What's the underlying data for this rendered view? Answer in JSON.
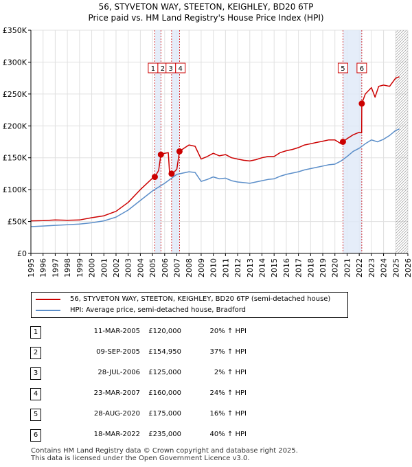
{
  "chart_data": {
    "type": "line",
    "title": "56, STYVETON WAY, STEETON, KEIGHLEY, BD20 6TP",
    "subtitle": "Price paid vs. HM Land Registry's House Price Index (HPI)",
    "xlim": [
      1995,
      2026
    ],
    "ylim": [
      0,
      350000
    ],
    "x_ticks": [
      1995,
      1996,
      1997,
      1998,
      1999,
      2000,
      2001,
      2002,
      2003,
      2004,
      2005,
      2006,
      2007,
      2008,
      2009,
      2010,
      2011,
      2012,
      2013,
      2014,
      2015,
      2016,
      2017,
      2018,
      2019,
      2020,
      2021,
      2022,
      2023,
      2024,
      2025,
      2026
    ],
    "y_ticks": [
      0,
      50000,
      100000,
      150000,
      200000,
      250000,
      300000,
      350000
    ],
    "y_tick_labels": [
      "£0",
      "£50K",
      "£100K",
      "£150K",
      "£200K",
      "£250K",
      "£300K",
      "£350K"
    ],
    "series": [
      {
        "name": "56, STYVETON WAY, STEETON, KEIGHLEY, BD20 6TP (semi-detached house)",
        "color": "#cc0000",
        "points": [
          [
            1995.0,
            51000
          ],
          [
            1996.0,
            51500
          ],
          [
            1997.0,
            52500
          ],
          [
            1998.0,
            52000
          ],
          [
            1999.0,
            52500
          ],
          [
            2000.0,
            56000
          ],
          [
            2001.0,
            59000
          ],
          [
            2002.0,
            66000
          ],
          [
            2003.0,
            80000
          ],
          [
            2004.0,
            100000
          ],
          [
            2005.0,
            118000
          ],
          [
            2005.19,
            120000
          ],
          [
            2005.5,
            130000
          ],
          [
            2005.69,
            154950
          ],
          [
            2006.0,
            157000
          ],
          [
            2006.3,
            158000
          ],
          [
            2006.4,
            127000
          ],
          [
            2006.57,
            125000
          ],
          [
            2006.8,
            128000
          ],
          [
            2007.0,
            132000
          ],
          [
            2007.22,
            160000
          ],
          [
            2007.6,
            165000
          ],
          [
            2008.0,
            170000
          ],
          [
            2008.5,
            168000
          ],
          [
            2009.0,
            148000
          ],
          [
            2009.5,
            152000
          ],
          [
            2010.0,
            157000
          ],
          [
            2010.5,
            153000
          ],
          [
            2011.0,
            155000
          ],
          [
            2011.5,
            150000
          ],
          [
            2012.0,
            148000
          ],
          [
            2012.5,
            146000
          ],
          [
            2013.0,
            145000
          ],
          [
            2013.5,
            147000
          ],
          [
            2014.0,
            150000
          ],
          [
            2014.5,
            152000
          ],
          [
            2015.0,
            152000
          ],
          [
            2015.5,
            158000
          ],
          [
            2016.0,
            161000
          ],
          [
            2016.5,
            163000
          ],
          [
            2017.0,
            166000
          ],
          [
            2017.5,
            170000
          ],
          [
            2018.0,
            172000
          ],
          [
            2018.5,
            174000
          ],
          [
            2019.0,
            176000
          ],
          [
            2019.5,
            178000
          ],
          [
            2020.0,
            178000
          ],
          [
            2020.5,
            172000
          ],
          [
            2020.66,
            175000
          ],
          [
            2021.0,
            180000
          ],
          [
            2021.5,
            186000
          ],
          [
            2022.0,
            190000
          ],
          [
            2022.2,
            189000
          ],
          [
            2022.21,
            235000
          ],
          [
            2022.5,
            250000
          ],
          [
            2023.0,
            260000
          ],
          [
            2023.3,
            245000
          ],
          [
            2023.6,
            262000
          ],
          [
            2024.0,
            264000
          ],
          [
            2024.5,
            262000
          ],
          [
            2025.0,
            275000
          ],
          [
            2025.3,
            277000
          ]
        ]
      },
      {
        "name": "HPI: Average price, semi-detached house, Bradford",
        "color": "#5b8ec9",
        "points": [
          [
            1995.0,
            42000
          ],
          [
            1996.0,
            43000
          ],
          [
            1997.0,
            44000
          ],
          [
            1998.0,
            45000
          ],
          [
            1999.0,
            46000
          ],
          [
            2000.0,
            48000
          ],
          [
            2001.0,
            51000
          ],
          [
            2002.0,
            57000
          ],
          [
            2003.0,
            68000
          ],
          [
            2004.0,
            83000
          ],
          [
            2005.0,
            98000
          ],
          [
            2006.0,
            110000
          ],
          [
            2007.0,
            124000
          ],
          [
            2008.0,
            128000
          ],
          [
            2008.5,
            127000
          ],
          [
            2009.0,
            113000
          ],
          [
            2009.5,
            116000
          ],
          [
            2010.0,
            120000
          ],
          [
            2010.5,
            117000
          ],
          [
            2011.0,
            118000
          ],
          [
            2011.5,
            114000
          ],
          [
            2012.0,
            112000
          ],
          [
            2012.5,
            111000
          ],
          [
            2013.0,
            110000
          ],
          [
            2013.5,
            112000
          ],
          [
            2014.0,
            114000
          ],
          [
            2014.5,
            116000
          ],
          [
            2015.0,
            117000
          ],
          [
            2015.5,
            121000
          ],
          [
            2016.0,
            124000
          ],
          [
            2016.5,
            126000
          ],
          [
            2017.0,
            128000
          ],
          [
            2017.5,
            131000
          ],
          [
            2018.0,
            133000
          ],
          [
            2018.5,
            135000
          ],
          [
            2019.0,
            137000
          ],
          [
            2019.5,
            139000
          ],
          [
            2020.0,
            140000
          ],
          [
            2020.5,
            145000
          ],
          [
            2021.0,
            152000
          ],
          [
            2021.5,
            160000
          ],
          [
            2022.0,
            165000
          ],
          [
            2022.5,
            172000
          ],
          [
            2023.0,
            178000
          ],
          [
            2023.5,
            175000
          ],
          [
            2024.0,
            179000
          ],
          [
            2024.5,
            185000
          ],
          [
            2025.0,
            193000
          ],
          [
            2025.3,
            195000
          ]
        ]
      }
    ],
    "sales": [
      {
        "num": "1",
        "x": 2005.19,
        "price": 120000
      },
      {
        "num": "2",
        "x": 2005.69,
        "price": 154950
      },
      {
        "num": "3",
        "x": 2006.57,
        "price": 125000
      },
      {
        "num": "4",
        "x": 2007.22,
        "price": 160000
      },
      {
        "num": "5",
        "x": 2020.66,
        "price": 175000
      },
      {
        "num": "6",
        "x": 2022.21,
        "price": 235000
      }
    ],
    "shaded_ranges": [
      [
        2005.19,
        2005.69
      ],
      [
        2006.57,
        2007.22
      ],
      [
        2020.66,
        2022.21
      ]
    ],
    "hatched_range": [
      2025.0,
      2026.0
    ],
    "label_groups": [
      {
        "labels": [
          "1",
          "2"
        ],
        "x": 2005.44
      },
      {
        "labels": [
          "3",
          "4"
        ],
        "x": 2006.9
      },
      {
        "labels": [
          "5"
        ],
        "x": 2020.66
      },
      {
        "labels": [
          "6"
        ],
        "x": 2022.21
      }
    ]
  },
  "legend": {
    "property_label": "56, STYVETON WAY, STEETON, KEIGHLEY, BD20 6TP (semi-detached house)",
    "hpi_label": "HPI: Average price, semi-detached house, Bradford",
    "property_color": "#cc0000",
    "hpi_color": "#5b8ec9"
  },
  "sales_table": [
    {
      "num": "1",
      "date": "11-MAR-2005",
      "price": "£120,000",
      "pct": "20% ↑ HPI"
    },
    {
      "num": "2",
      "date": "09-SEP-2005",
      "price": "£154,950",
      "pct": "37% ↑ HPI"
    },
    {
      "num": "3",
      "date": "28-JUL-2006",
      "price": "£125,000",
      "pct": "2% ↑ HPI"
    },
    {
      "num": "4",
      "date": "23-MAR-2007",
      "price": "£160,000",
      "pct": "24% ↑ HPI"
    },
    {
      "num": "5",
      "date": "28-AUG-2020",
      "price": "£175,000",
      "pct": "16% ↑ HPI"
    },
    {
      "num": "6",
      "date": "18-MAR-2022",
      "price": "£235,000",
      "pct": "40% ↑ HPI"
    }
  ],
  "footer": {
    "line1": "Contains HM Land Registry data © Crown copyright and database right 2025.",
    "line2": "This data is licensed under the Open Government Licence v3.0."
  }
}
